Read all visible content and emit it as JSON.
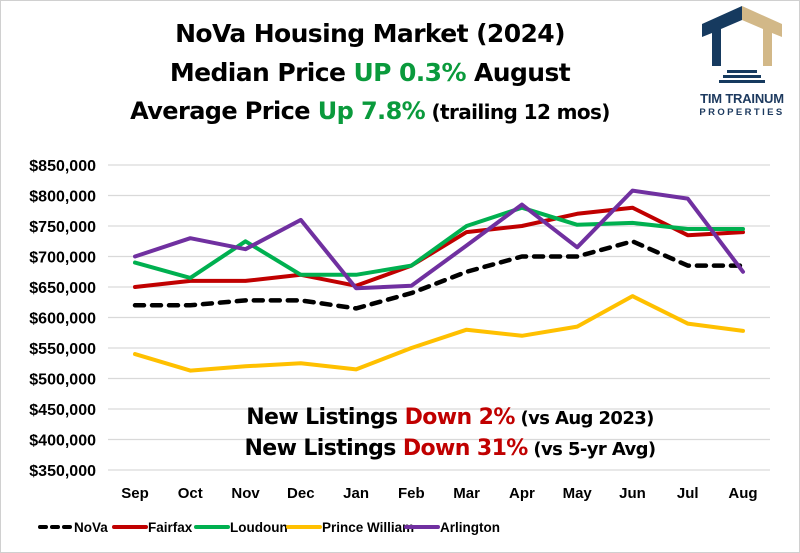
{
  "title": {
    "line1": "NoVa Housing Market (2024)",
    "line2_prefix": "Median Price ",
    "line2_highlight": "UP 0.3%",
    "line2_suffix": " August",
    "line3_prefix": "Average Price ",
    "line3_highlight": "Up 7.8%",
    "line3_suffix": " (trailing 12 mos)"
  },
  "logo": {
    "name": "TIM TRAINUM",
    "subtitle": "PROPERTIES",
    "icon": "column-house-icon",
    "colors": {
      "navy": "#163a5f",
      "gold": "#d2b888"
    }
  },
  "annotations": {
    "line1_prefix": "New Listings ",
    "line1_highlight": "Down 2%",
    "line1_suffix": " (vs Aug 2023)",
    "line2_prefix": "New Listings ",
    "line2_highlight": "Down 31%",
    "line2_suffix": " (vs 5-yr Avg)"
  },
  "colors": {
    "up": "#0a9a3c",
    "down": "#c00000",
    "grid": "#d9d9d9"
  },
  "chart_data": {
    "type": "line",
    "title": "NoVa Housing Market (2024)",
    "xlabel": "",
    "ylabel": "",
    "categories": [
      "Sep",
      "Oct",
      "Nov",
      "Dec",
      "Jan",
      "Feb",
      "Mar",
      "Apr",
      "May",
      "Jun",
      "Jul",
      "Aug"
    ],
    "ylim": [
      350000,
      850000
    ],
    "ytick_step": 50000,
    "yticks": [
      "$850,000",
      "$800,000",
      "$750,000",
      "$700,000",
      "$650,000",
      "$600,000",
      "$550,000",
      "$500,000",
      "$450,000",
      "$400,000",
      "$350,000"
    ],
    "grid": true,
    "legend_position": "bottom",
    "series": [
      {
        "name": "NoVa",
        "color": "#000000",
        "dashed": true,
        "values": [
          620000,
          620000,
          628000,
          628000,
          615000,
          640000,
          675000,
          700000,
          700000,
          725000,
          685000,
          685000
        ]
      },
      {
        "name": "Fairfax",
        "color": "#c00000",
        "dashed": false,
        "values": [
          650000,
          660000,
          660000,
          670000,
          652000,
          685000,
          740000,
          750000,
          770000,
          780000,
          735000,
          740000
        ]
      },
      {
        "name": "Loudoun",
        "color": "#00b050",
        "dashed": false,
        "values": [
          690000,
          665000,
          725000,
          670000,
          670000,
          685000,
          750000,
          780000,
          752000,
          755000,
          745000,
          745000
        ]
      },
      {
        "name": "Prince William",
        "color": "#ffc000",
        "dashed": false,
        "values": [
          540000,
          513000,
          520000,
          525000,
          515000,
          550000,
          580000,
          570000,
          585000,
          635000,
          590000,
          578000
        ]
      },
      {
        "name": "Arlington",
        "color": "#7030a0",
        "dashed": false,
        "values": [
          700000,
          730000,
          712000,
          760000,
          648000,
          652000,
          718000,
          785000,
          715000,
          808000,
          795000,
          675000
        ]
      }
    ]
  }
}
